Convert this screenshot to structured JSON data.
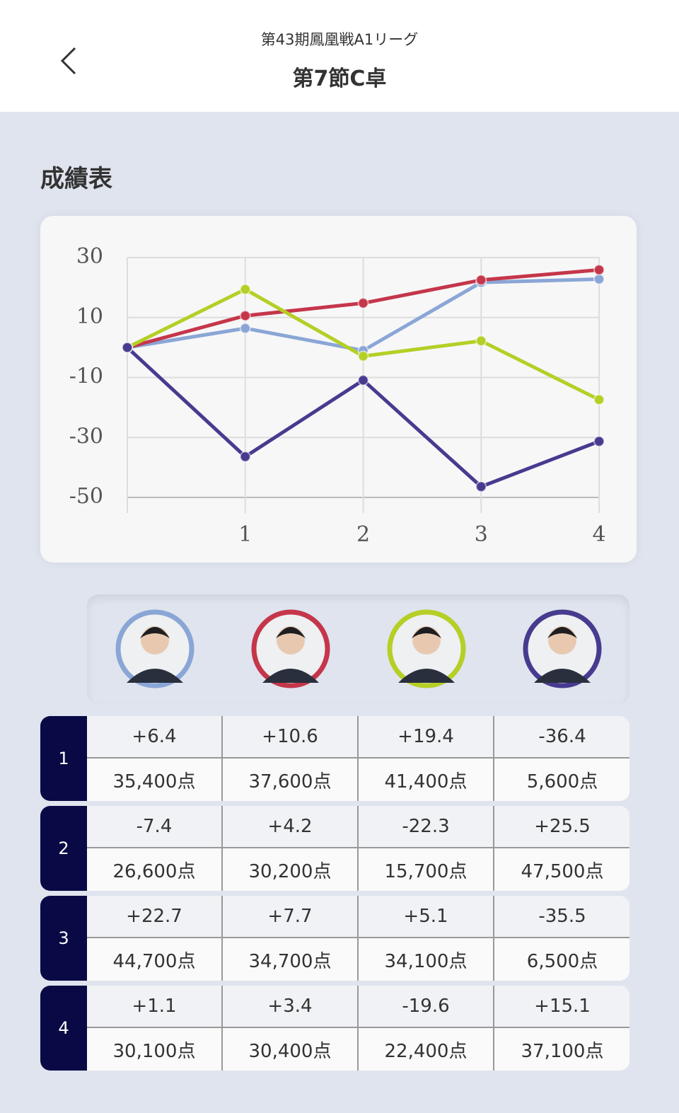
{
  "header": {
    "subtitle": "第43期鳳凰戦A1リーグ",
    "title": "第7節C卓"
  },
  "section_title": "成績表",
  "chart_data": {
    "type": "line",
    "categories": [
      null,
      "1",
      "2",
      "3",
      "4"
    ],
    "series": [
      {
        "color": "#8aa6d6",
        "values": [
          0,
          6.4,
          -1.0,
          21.7,
          22.8
        ]
      },
      {
        "color": "#c5364a",
        "values": [
          0,
          10.6,
          14.8,
          22.5,
          25.9
        ]
      },
      {
        "color": "#b5cf26",
        "values": [
          0,
          19.4,
          -2.9,
          2.2,
          -17.4
        ]
      },
      {
        "color": "#473b8f",
        "values": [
          0,
          -36.4,
          -10.9,
          -46.4,
          -31.3
        ]
      }
    ],
    "ylim": [
      -50,
      30
    ],
    "yticks": [
      30,
      10,
      -10,
      -30,
      -50
    ],
    "grid": true
  },
  "table": {
    "rows": [
      {
        "round": "1",
        "cells": [
          [
            "+6.4",
            "35,400点"
          ],
          [
            "+10.6",
            "37,600点"
          ],
          [
            "+19.4",
            "41,400点"
          ],
          [
            "-36.4",
            "5,600点"
          ]
        ]
      },
      {
        "round": "2",
        "cells": [
          [
            "-7.4",
            "26,600点"
          ],
          [
            "+4.2",
            "30,200点"
          ],
          [
            "-22.3",
            "15,700点"
          ],
          [
            "+25.5",
            "47,500点"
          ]
        ]
      },
      {
        "round": "3",
        "cells": [
          [
            "+22.7",
            "44,700点"
          ],
          [
            "+7.7",
            "34,700点"
          ],
          [
            "+5.1",
            "34,100点"
          ],
          [
            "-35.5",
            "6,500点"
          ]
        ]
      },
      {
        "round": "4",
        "cells": [
          [
            "+1.1",
            "30,100点"
          ],
          [
            "+3.4",
            "30,400点"
          ],
          [
            "-19.6",
            "22,400点"
          ],
          [
            "+15.1",
            "37,100点"
          ]
        ]
      }
    ]
  }
}
